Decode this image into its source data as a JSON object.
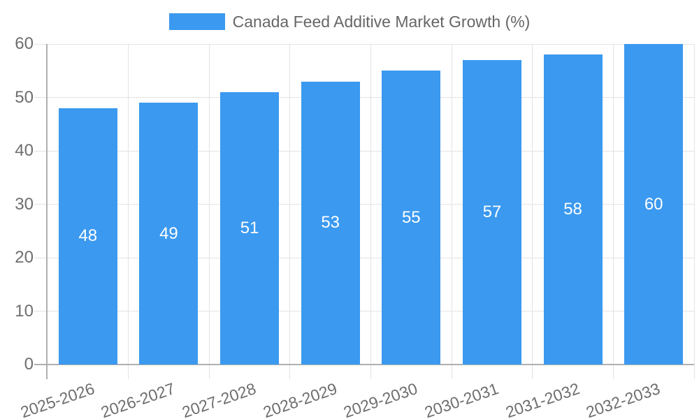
{
  "legend": {
    "label": "Canada Feed Additive Market Growth (%)"
  },
  "chart_data": {
    "type": "bar",
    "title": "Canada Feed Additive Market Growth (%)",
    "categories": [
      "2025-2026",
      "2026-2027",
      "2027-2028",
      "2028-2029",
      "2029-2030",
      "2030-2031",
      "2031-2032",
      "2032-2033"
    ],
    "values": [
      48,
      49,
      51,
      53,
      55,
      57,
      58,
      60
    ],
    "xlabel": "",
    "ylabel": "",
    "ylim": [
      0,
      60
    ],
    "yticks": [
      0,
      10,
      20,
      30,
      40,
      50,
      60
    ],
    "grid": true,
    "legend_position": "top-center",
    "value_labels": "inside-center",
    "colors": {
      "bar": "#3B99EF",
      "value_label": "#FFFFFF",
      "grid": "#E3E3E3",
      "axis": "#B0B0B0",
      "tick_text": "#6E6E6E",
      "legend_text": "#666666",
      "background": "#FFFFFF"
    }
  }
}
